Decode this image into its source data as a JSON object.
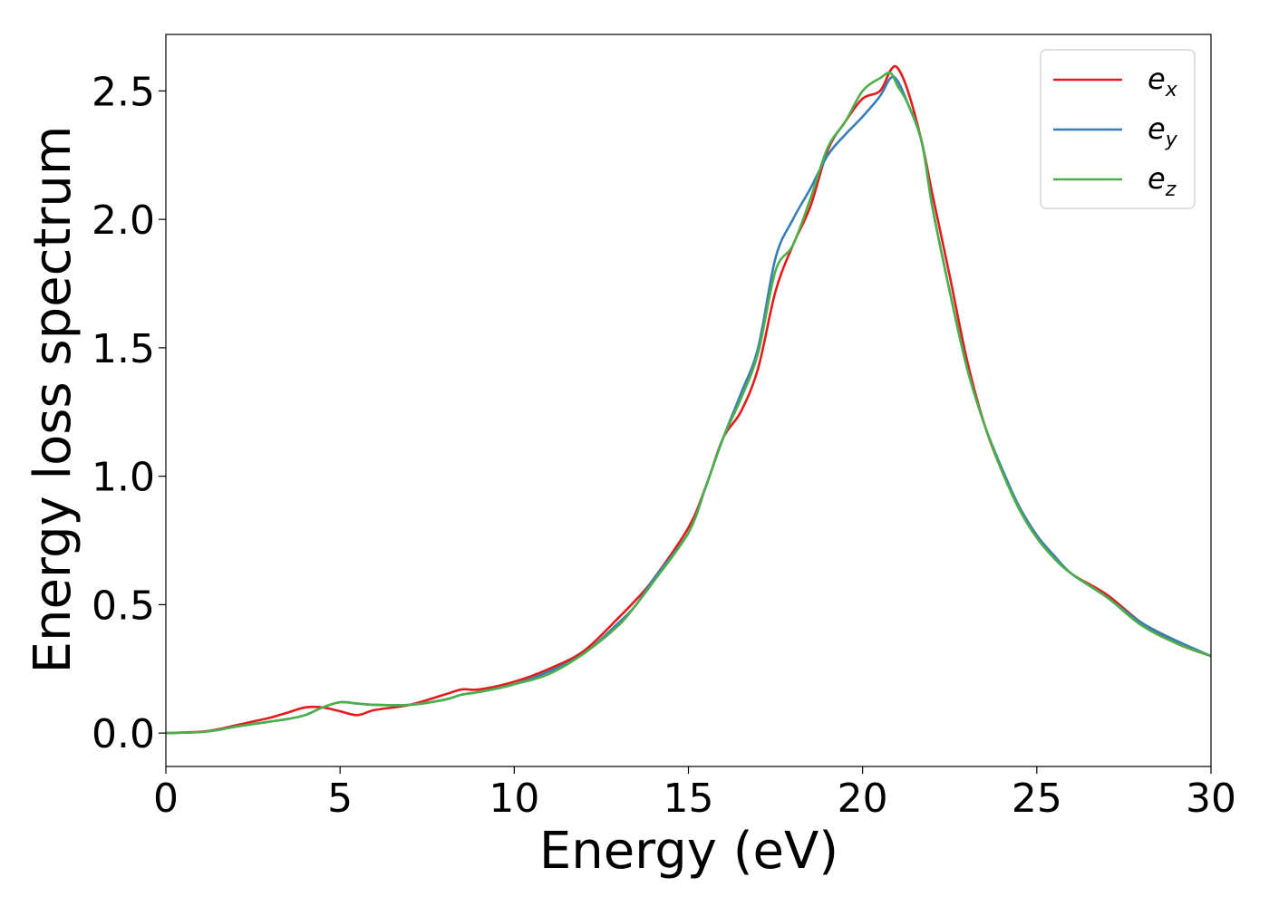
{
  "chart_data": {
    "type": "line",
    "xlabel": "Energy (eV)",
    "ylabel": "Energy loss spectrum",
    "xlim": [
      0,
      30
    ],
    "ylim": [
      -0.13,
      2.72
    ],
    "xticks": [
      0,
      5,
      10,
      15,
      20,
      25,
      30
    ],
    "xtick_labels": [
      "0",
      "5",
      "10",
      "15",
      "20",
      "25",
      "30"
    ],
    "yticks": [
      0.0,
      0.5,
      1.0,
      1.5,
      2.0,
      2.5
    ],
    "ytick_labels": [
      "0.0",
      "0.5",
      "1.0",
      "1.5",
      "2.0",
      "2.5"
    ],
    "grid": false,
    "legend_position": "top-right",
    "series": [
      {
        "name": "e",
        "subscript": "x",
        "color": "#e41a1c",
        "x": [
          0,
          1,
          1.5,
          2,
          2.5,
          3,
          3.5,
          4,
          4.5,
          5,
          5.5,
          6,
          7,
          8,
          8.5,
          9,
          10,
          11,
          12,
          13,
          13.5,
          14,
          15,
          15.5,
          16,
          16.5,
          17,
          17.5,
          18,
          18.5,
          19,
          19.5,
          20,
          20.5,
          20.8,
          21,
          21.3,
          21.7,
          22,
          22.5,
          23,
          23.5,
          24,
          24.5,
          25,
          25.5,
          26,
          27,
          28,
          29,
          30
        ],
        "y": [
          0,
          0.005,
          0.015,
          0.03,
          0.045,
          0.06,
          0.08,
          0.1,
          0.1,
          0.085,
          0.07,
          0.09,
          0.11,
          0.15,
          0.17,
          0.17,
          0.2,
          0.25,
          0.32,
          0.45,
          0.52,
          0.6,
          0.8,
          0.96,
          1.15,
          1.25,
          1.42,
          1.72,
          1.9,
          2.05,
          2.27,
          2.38,
          2.47,
          2.5,
          2.58,
          2.59,
          2.5,
          2.3,
          2.1,
          1.78,
          1.45,
          1.2,
          1.02,
          0.88,
          0.77,
          0.69,
          0.62,
          0.54,
          0.43,
          0.35,
          0.3
        ]
      },
      {
        "name": "e",
        "subscript": "y",
        "color": "#377eb8",
        "x": [
          0,
          1,
          1.5,
          2,
          2.5,
          3,
          3.5,
          4,
          4.5,
          5,
          5.5,
          6,
          7,
          8,
          8.5,
          9,
          10,
          11,
          12,
          13,
          13.5,
          14,
          15,
          15.5,
          16,
          16.5,
          17,
          17.5,
          18,
          18.5,
          19,
          19.5,
          20,
          20.5,
          20.8,
          21,
          21.3,
          21.7,
          22,
          22.5,
          23,
          23.5,
          24,
          24.5,
          25,
          25.5,
          26,
          27,
          28,
          29,
          30
        ],
        "y": [
          0,
          0.004,
          0.012,
          0.025,
          0.035,
          0.045,
          0.055,
          0.07,
          0.1,
          0.12,
          0.115,
          0.11,
          0.11,
          0.13,
          0.15,
          0.16,
          0.19,
          0.24,
          0.31,
          0.43,
          0.5,
          0.6,
          0.78,
          0.96,
          1.15,
          1.32,
          1.5,
          1.85,
          2.0,
          2.12,
          2.25,
          2.33,
          2.4,
          2.48,
          2.55,
          2.54,
          2.45,
          2.3,
          2.05,
          1.72,
          1.42,
          1.2,
          1.03,
          0.88,
          0.77,
          0.69,
          0.62,
          0.53,
          0.43,
          0.36,
          0.3
        ]
      },
      {
        "name": "e",
        "subscript": "z",
        "color": "#4daf4a",
        "x": [
          0,
          1,
          1.5,
          2,
          2.5,
          3,
          3.5,
          4,
          4.5,
          5,
          5.5,
          6,
          7,
          8,
          8.5,
          9,
          10,
          11,
          12,
          13,
          13.5,
          14,
          15,
          15.5,
          16,
          16.5,
          17,
          17.5,
          18,
          18.5,
          19,
          19.5,
          20,
          20.5,
          20.8,
          21,
          21.3,
          21.7,
          22,
          22.5,
          23,
          23.5,
          24,
          24.5,
          25,
          25.5,
          26,
          27,
          28,
          29,
          30
        ],
        "y": [
          0,
          0.004,
          0.012,
          0.025,
          0.035,
          0.045,
          0.055,
          0.07,
          0.1,
          0.12,
          0.115,
          0.11,
          0.11,
          0.13,
          0.15,
          0.16,
          0.19,
          0.23,
          0.31,
          0.42,
          0.5,
          0.59,
          0.78,
          0.96,
          1.15,
          1.3,
          1.48,
          1.8,
          1.9,
          2.08,
          2.28,
          2.38,
          2.5,
          2.55,
          2.57,
          2.52,
          2.45,
          2.3,
          2.05,
          1.72,
          1.42,
          1.2,
          1.02,
          0.87,
          0.76,
          0.68,
          0.62,
          0.53,
          0.42,
          0.35,
          0.3
        ]
      }
    ]
  }
}
